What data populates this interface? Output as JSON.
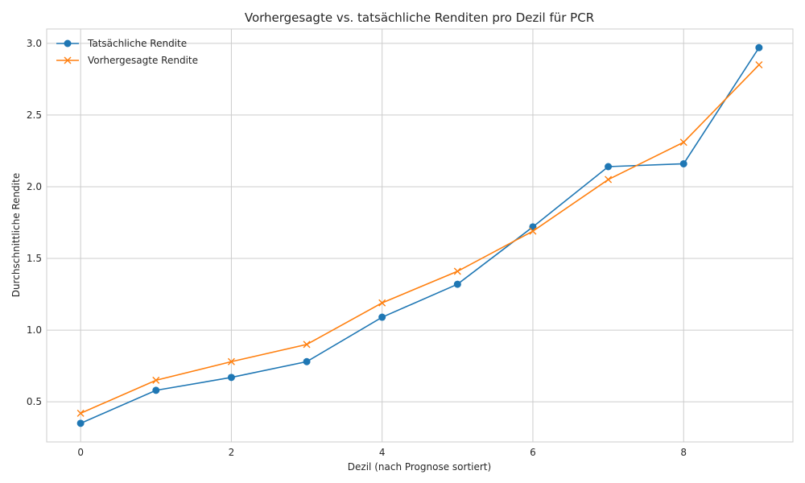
{
  "chart_data": {
    "type": "line",
    "title": "Vorhergesagte vs. tatsächliche Renditen pro Dezil für PCR",
    "xlabel": "Dezil (nach Prognose sortiert)",
    "ylabel": "Durchschnittliche Rendite",
    "x": [
      0,
      1,
      2,
      3,
      4,
      5,
      6,
      7,
      8,
      9
    ],
    "xlim": [
      -0.45,
      9.45
    ],
    "ylim": [
      0.22,
      3.1
    ],
    "xticks": [
      0,
      2,
      4,
      6,
      8
    ],
    "yticks": [
      0.5,
      1.0,
      1.5,
      2.0,
      2.5,
      3.0
    ],
    "grid": true,
    "legend_position": "top-left",
    "series": [
      {
        "name": "Tatsächliche Rendite",
        "marker": "circle",
        "color": "#1f77b4",
        "values": [
          0.35,
          0.58,
          0.67,
          0.78,
          1.09,
          1.32,
          1.72,
          2.14,
          2.16,
          2.97
        ]
      },
      {
        "name": "Vorhergesagte Rendite",
        "marker": "x",
        "color": "#ff7f0e",
        "values": [
          0.42,
          0.65,
          0.78,
          0.9,
          1.19,
          1.41,
          1.69,
          2.05,
          2.31,
          2.85
        ]
      }
    ]
  }
}
